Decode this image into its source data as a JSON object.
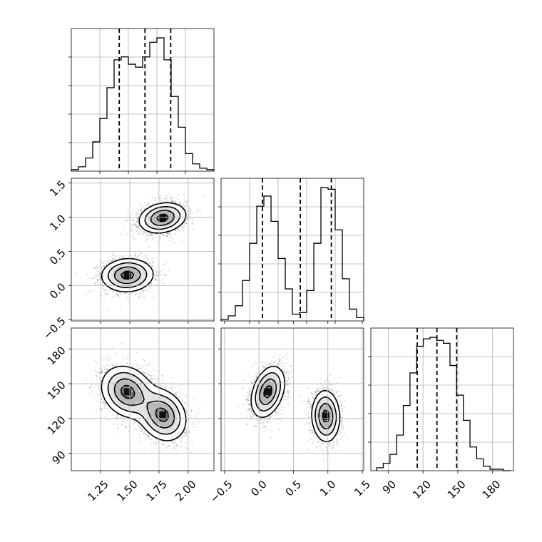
{
  "chart_data": [
    {
      "panel": "hist-x",
      "type": "bar",
      "xlim": [
        1.0,
        2.22
      ],
      "bin_edges": [
        1.0,
        1.061,
        1.122,
        1.183,
        1.244,
        1.305,
        1.366,
        1.427,
        1.488,
        1.549,
        1.61,
        1.671,
        1.732,
        1.793,
        1.854,
        1.915,
        1.976,
        2.037,
        2.098,
        2.159,
        2.22
      ],
      "counts": [
        1,
        3,
        9,
        20,
        36,
        57,
        76,
        78,
        73,
        71,
        78,
        88,
        91,
        76,
        51,
        30,
        12,
        5,
        2,
        1
      ],
      "quantiles": [
        1.41,
        1.63,
        1.85
      ],
      "grid": true
    },
    {
      "panel": "joint-x-y",
      "type": "heatmap",
      "xlim": [
        1.0,
        2.22
      ],
      "ylim": [
        -0.52,
        1.57
      ],
      "yticks": [
        -0.5,
        0.0,
        0.5,
        1.0,
        1.5
      ],
      "ytick_labels": [
        "−0.5",
        "0.0",
        "0.5",
        "1.0",
        "1.5"
      ],
      "modes": [
        {
          "x": 1.48,
          "y": 0.15,
          "sx": 0.11,
          "sy": 0.12,
          "rho": 0.05
        },
        {
          "x": 1.78,
          "y": 0.99,
          "sx": 0.1,
          "sy": 0.11,
          "rho": 0.2
        }
      ],
      "grid": true
    },
    {
      "panel": "hist-y",
      "type": "bar",
      "xlim": [
        -0.55,
        1.52
      ],
      "bin_edges": [
        -0.55,
        -0.446,
        -0.343,
        -0.239,
        -0.136,
        -0.032,
        0.071,
        0.175,
        0.278,
        0.382,
        0.485,
        0.589,
        0.692,
        0.796,
        0.899,
        1.003,
        1.106,
        1.21,
        1.313,
        1.417,
        1.52
      ],
      "counts": [
        1,
        3,
        9,
        24,
        46,
        68,
        74,
        59,
        37,
        19,
        4,
        5,
        18,
        46,
        79,
        78,
        54,
        25,
        7,
        2
      ],
      "quantiles": [
        0.05,
        0.6,
        1.05
      ],
      "grid": true
    },
    {
      "panel": "joint-x-z",
      "type": "heatmap",
      "xlim": [
        1.0,
        2.22
      ],
      "ylim": [
        75,
        198
      ],
      "xticks": [
        1.25,
        1.5,
        1.75,
        2.0
      ],
      "xtick_labels": [
        "1.25",
        "1.50",
        "1.75",
        "2.00"
      ],
      "yticks": [
        90,
        120,
        150,
        180
      ],
      "ytick_labels": [
        "90",
        "120",
        "150",
        "180"
      ],
      "modes": [
        {
          "x": 1.48,
          "y": 143,
          "sx": 0.11,
          "sy": 11,
          "rho": -0.2
        },
        {
          "x": 1.78,
          "y": 123,
          "sx": 0.1,
          "sy": 11,
          "rho": -0.2
        }
      ],
      "grid": true
    },
    {
      "panel": "joint-y-z",
      "type": "heatmap",
      "xlim": [
        -0.55,
        1.52
      ],
      "ylim": [
        75,
        198
      ],
      "xticks": [
        -0.5,
        0.0,
        0.5,
        1.0,
        1.5
      ],
      "xtick_labels": [
        "−0.5",
        "0.0",
        "0.5",
        "1.0",
        "1.5"
      ],
      "modes": [
        {
          "x": 0.13,
          "y": 143,
          "sx": 0.12,
          "sy": 11,
          "rho": 0.35
        },
        {
          "x": 0.97,
          "y": 122,
          "sx": 0.1,
          "sy": 11,
          "rho": -0.05
        }
      ],
      "grid": true
    },
    {
      "panel": "hist-z",
      "type": "bar",
      "xlim": [
        75,
        198
      ],
      "xticks": [
        90,
        120,
        150,
        180
      ],
      "xtick_labels": [
        "90",
        "120",
        "150",
        "180"
      ],
      "bin_edges": [
        80,
        85.75,
        91.5,
        97.25,
        103,
        108.75,
        114.5,
        120.25,
        126,
        131.75,
        137.5,
        143.25,
        149,
        154.75,
        160.5,
        166.25,
        172,
        177.75,
        183.5,
        189.25,
        195
      ],
      "counts": [
        2,
        5,
        11,
        24,
        44,
        66,
        84,
        89,
        90,
        88,
        86,
        71,
        51,
        34,
        16,
        8,
        3,
        1,
        1,
        0
      ],
      "quantiles": [
        115,
        132,
        149
      ],
      "grid": true
    }
  ]
}
